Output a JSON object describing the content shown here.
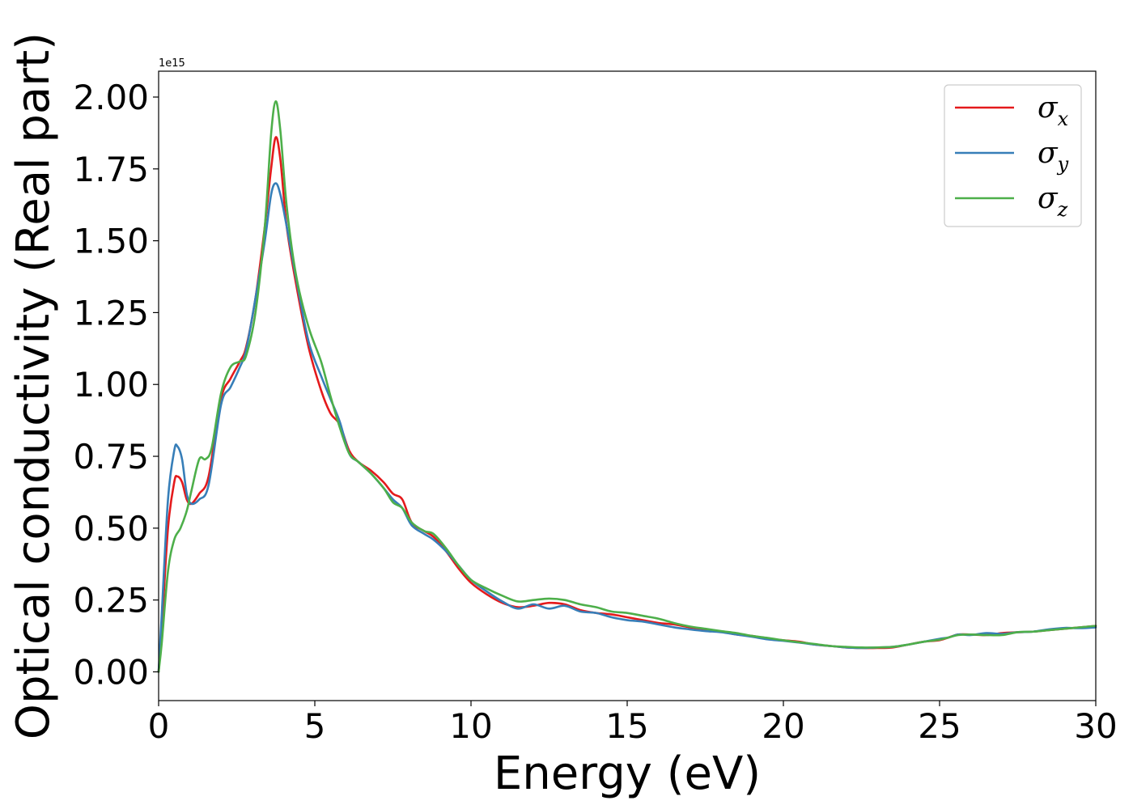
{
  "chart_data": {
    "type": "line",
    "xlabel": "Energy (eV)",
    "ylabel": "Optical conductivity (Real part)",
    "y_offset_label": "1e15",
    "xlim": [
      0,
      30
    ],
    "ylim": [
      -0.1,
      2.09
    ],
    "x_ticks": [
      0,
      5,
      10,
      15,
      20,
      25,
      30
    ],
    "x_tick_labels": [
      "0",
      "5",
      "10",
      "15",
      "20",
      "25",
      "30"
    ],
    "y_ticks": [
      0.0,
      0.25,
      0.5,
      0.75,
      1.0,
      1.25,
      1.5,
      1.75,
      2.0
    ],
    "y_tick_labels": [
      "0.00",
      "0.25",
      "0.50",
      "0.75",
      "1.00",
      "1.25",
      "1.50",
      "1.75",
      "2.00"
    ],
    "grid": false,
    "legend": "top-right",
    "series": [
      {
        "name": "σ",
        "subscript": "x",
        "color": "#e41a1c",
        "points": [
          [
            0,
            0
          ],
          [
            0.1,
            0.15
          ],
          [
            0.3,
            0.5
          ],
          [
            0.5,
            0.66
          ],
          [
            0.6,
            0.68
          ],
          [
            0.75,
            0.66
          ],
          [
            0.9,
            0.6
          ],
          [
            1.05,
            0.585
          ],
          [
            1.3,
            0.62
          ],
          [
            1.6,
            0.68
          ],
          [
            2.0,
            0.95
          ],
          [
            2.3,
            1.02
          ],
          [
            2.6,
            1.08
          ],
          [
            2.8,
            1.13
          ],
          [
            3.1,
            1.3
          ],
          [
            3.4,
            1.55
          ],
          [
            3.6,
            1.75
          ],
          [
            3.75,
            1.86
          ],
          [
            3.9,
            1.78
          ],
          [
            4.1,
            1.55
          ],
          [
            4.4,
            1.35
          ],
          [
            4.8,
            1.13
          ],
          [
            5.2,
            0.98
          ],
          [
            5.5,
            0.9
          ],
          [
            5.8,
            0.86
          ],
          [
            6.1,
            0.77
          ],
          [
            6.4,
            0.73
          ],
          [
            6.8,
            0.7
          ],
          [
            7.2,
            0.66
          ],
          [
            7.5,
            0.62
          ],
          [
            7.8,
            0.6
          ],
          [
            8.1,
            0.52
          ],
          [
            8.5,
            0.49
          ],
          [
            8.8,
            0.47
          ],
          [
            9.2,
            0.42
          ],
          [
            9.6,
            0.36
          ],
          [
            10.0,
            0.31
          ],
          [
            10.5,
            0.27
          ],
          [
            11.0,
            0.24
          ],
          [
            11.5,
            0.225
          ],
          [
            12.0,
            0.23
          ],
          [
            12.5,
            0.24
          ],
          [
            13.0,
            0.235
          ],
          [
            13.5,
            0.215
          ],
          [
            14.0,
            0.205
          ],
          [
            14.5,
            0.2
          ],
          [
            15.0,
            0.19
          ],
          [
            15.5,
            0.18
          ],
          [
            16.0,
            0.17
          ],
          [
            16.5,
            0.165
          ],
          [
            17.0,
            0.155
          ],
          [
            17.5,
            0.148
          ],
          [
            18.0,
            0.14
          ],
          [
            18.5,
            0.13
          ],
          [
            19.0,
            0.125
          ],
          [
            19.5,
            0.115
          ],
          [
            20.0,
            0.11
          ],
          [
            20.5,
            0.105
          ],
          [
            21.0,
            0.095
          ],
          [
            21.5,
            0.09
          ],
          [
            22.0,
            0.085
          ],
          [
            22.5,
            0.083
          ],
          [
            23.0,
            0.083
          ],
          [
            23.5,
            0.085
          ],
          [
            24.0,
            0.095
          ],
          [
            24.5,
            0.105
          ],
          [
            25.0,
            0.11
          ],
          [
            25.3,
            0.12
          ],
          [
            25.6,
            0.13
          ],
          [
            26.0,
            0.13
          ],
          [
            26.5,
            0.128
          ],
          [
            27.0,
            0.135
          ],
          [
            27.5,
            0.138
          ],
          [
            28.0,
            0.14
          ],
          [
            28.5,
            0.145
          ],
          [
            29.0,
            0.15
          ],
          [
            29.5,
            0.155
          ],
          [
            30.0,
            0.16
          ]
        ]
      },
      {
        "name": "σ",
        "subscript": "y",
        "color": "#377eb8",
        "points": [
          [
            0,
            0
          ],
          [
            0.1,
            0.2
          ],
          [
            0.3,
            0.6
          ],
          [
            0.5,
            0.77
          ],
          [
            0.6,
            0.785
          ],
          [
            0.75,
            0.74
          ],
          [
            0.9,
            0.62
          ],
          [
            1.05,
            0.585
          ],
          [
            1.3,
            0.6
          ],
          [
            1.6,
            0.65
          ],
          [
            2.0,
            0.93
          ],
          [
            2.3,
            0.99
          ],
          [
            2.6,
            1.06
          ],
          [
            2.8,
            1.12
          ],
          [
            3.1,
            1.3
          ],
          [
            3.4,
            1.5
          ],
          [
            3.6,
            1.66
          ],
          [
            3.75,
            1.7
          ],
          [
            3.9,
            1.66
          ],
          [
            4.1,
            1.55
          ],
          [
            4.4,
            1.37
          ],
          [
            4.8,
            1.15
          ],
          [
            5.2,
            1.03
          ],
          [
            5.5,
            0.95
          ],
          [
            5.8,
            0.87
          ],
          [
            6.1,
            0.76
          ],
          [
            6.4,
            0.73
          ],
          [
            6.8,
            0.69
          ],
          [
            7.2,
            0.64
          ],
          [
            7.5,
            0.6
          ],
          [
            7.8,
            0.57
          ],
          [
            8.1,
            0.51
          ],
          [
            8.5,
            0.48
          ],
          [
            8.8,
            0.46
          ],
          [
            9.2,
            0.42
          ],
          [
            9.6,
            0.37
          ],
          [
            10.0,
            0.32
          ],
          [
            10.5,
            0.28
          ],
          [
            11.0,
            0.245
          ],
          [
            11.5,
            0.22
          ],
          [
            12.0,
            0.235
          ],
          [
            12.5,
            0.22
          ],
          [
            13.0,
            0.23
          ],
          [
            13.5,
            0.21
          ],
          [
            14.0,
            0.205
          ],
          [
            14.5,
            0.19
          ],
          [
            15.0,
            0.18
          ],
          [
            15.5,
            0.175
          ],
          [
            16.0,
            0.165
          ],
          [
            16.5,
            0.155
          ],
          [
            17.0,
            0.148
          ],
          [
            17.5,
            0.142
          ],
          [
            18.0,
            0.138
          ],
          [
            18.5,
            0.13
          ],
          [
            19.0,
            0.122
          ],
          [
            19.5,
            0.113
          ],
          [
            20.0,
            0.108
          ],
          [
            20.5,
            0.102
          ],
          [
            21.0,
            0.095
          ],
          [
            21.5,
            0.09
          ],
          [
            22.0,
            0.085
          ],
          [
            22.5,
            0.083
          ],
          [
            23.0,
            0.085
          ],
          [
            23.5,
            0.087
          ],
          [
            24.0,
            0.095
          ],
          [
            24.5,
            0.105
          ],
          [
            25.0,
            0.115
          ],
          [
            25.3,
            0.12
          ],
          [
            25.6,
            0.13
          ],
          [
            26.0,
            0.128
          ],
          [
            26.5,
            0.135
          ],
          [
            27.0,
            0.132
          ],
          [
            27.5,
            0.138
          ],
          [
            28.0,
            0.14
          ],
          [
            28.5,
            0.148
          ],
          [
            29.0,
            0.153
          ],
          [
            29.5,
            0.152
          ],
          [
            30.0,
            0.155
          ]
        ]
      },
      {
        "name": "σ",
        "subscript": "z",
        "color": "#4daf4a",
        "points": [
          [
            0,
            0
          ],
          [
            0.1,
            0.1
          ],
          [
            0.3,
            0.35
          ],
          [
            0.5,
            0.46
          ],
          [
            0.7,
            0.5
          ],
          [
            0.9,
            0.56
          ],
          [
            1.05,
            0.63
          ],
          [
            1.3,
            0.74
          ],
          [
            1.5,
            0.74
          ],
          [
            1.7,
            0.78
          ],
          [
            2.0,
            0.97
          ],
          [
            2.3,
            1.06
          ],
          [
            2.6,
            1.08
          ],
          [
            2.8,
            1.1
          ],
          [
            3.1,
            1.25
          ],
          [
            3.4,
            1.55
          ],
          [
            3.6,
            1.87
          ],
          [
            3.75,
            1.985
          ],
          [
            3.9,
            1.88
          ],
          [
            4.1,
            1.62
          ],
          [
            4.4,
            1.38
          ],
          [
            4.8,
            1.2
          ],
          [
            5.2,
            1.08
          ],
          [
            5.5,
            0.96
          ],
          [
            5.8,
            0.85
          ],
          [
            6.1,
            0.76
          ],
          [
            6.4,
            0.73
          ],
          [
            6.8,
            0.69
          ],
          [
            7.2,
            0.64
          ],
          [
            7.5,
            0.59
          ],
          [
            7.8,
            0.57
          ],
          [
            8.1,
            0.52
          ],
          [
            8.5,
            0.49
          ],
          [
            8.8,
            0.48
          ],
          [
            9.2,
            0.43
          ],
          [
            9.6,
            0.37
          ],
          [
            10.0,
            0.32
          ],
          [
            10.5,
            0.29
          ],
          [
            11.0,
            0.265
          ],
          [
            11.5,
            0.245
          ],
          [
            12.0,
            0.25
          ],
          [
            12.5,
            0.255
          ],
          [
            13.0,
            0.25
          ],
          [
            13.5,
            0.235
          ],
          [
            14.0,
            0.225
          ],
          [
            14.5,
            0.21
          ],
          [
            15.0,
            0.205
          ],
          [
            15.5,
            0.195
          ],
          [
            16.0,
            0.185
          ],
          [
            16.5,
            0.17
          ],
          [
            17.0,
            0.158
          ],
          [
            17.5,
            0.15
          ],
          [
            18.0,
            0.142
          ],
          [
            18.5,
            0.135
          ],
          [
            19.0,
            0.125
          ],
          [
            19.5,
            0.118
          ],
          [
            20.0,
            0.11
          ],
          [
            20.5,
            0.103
          ],
          [
            21.0,
            0.097
          ],
          [
            21.5,
            0.09
          ],
          [
            22.0,
            0.087
          ],
          [
            22.5,
            0.085
          ],
          [
            23.0,
            0.085
          ],
          [
            23.5,
            0.087
          ],
          [
            24.0,
            0.095
          ],
          [
            24.5,
            0.105
          ],
          [
            25.0,
            0.112
          ],
          [
            25.3,
            0.12
          ],
          [
            25.6,
            0.128
          ],
          [
            26.0,
            0.13
          ],
          [
            26.5,
            0.128
          ],
          [
            27.0,
            0.128
          ],
          [
            27.5,
            0.138
          ],
          [
            28.0,
            0.14
          ],
          [
            28.5,
            0.145
          ],
          [
            29.0,
            0.15
          ],
          [
            29.5,
            0.155
          ],
          [
            30.0,
            0.16
          ]
        ]
      }
    ]
  }
}
